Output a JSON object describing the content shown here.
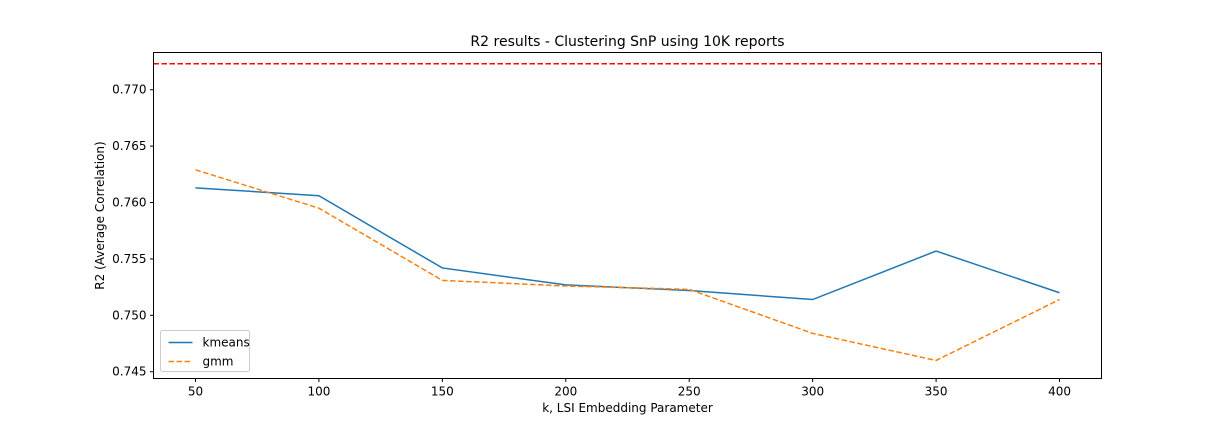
{
  "chart_data": {
    "type": "line",
    "title": "R2 results - Clustering SnP using 10K reports",
    "xlabel": "k, LSI Embedding Parameter",
    "ylabel": "R2 (Average Correlation)",
    "x": [
      50,
      100,
      150,
      200,
      250,
      300,
      350,
      400
    ],
    "x_ticks": [
      "50",
      "100",
      "150",
      "200",
      "250",
      "300",
      "350",
      "400"
    ],
    "y_ticks": [
      "0.745",
      "0.750",
      "0.755",
      "0.760",
      "0.765",
      "0.770"
    ],
    "xlim": [
      33,
      417
    ],
    "ylim": [
      0.7444,
      0.7733
    ],
    "grid": false,
    "legend_position": "lower-left",
    "series": [
      {
        "name": "kmeans",
        "color": "#1f77b4",
        "style": "solid",
        "values": [
          0.7613,
          0.7606,
          0.7542,
          0.7527,
          0.7522,
          0.7514,
          0.7557,
          0.752
        ]
      },
      {
        "name": "gmm",
        "color": "#ff7f0e",
        "style": "dashed",
        "values": [
          0.7629,
          0.7595,
          0.7531,
          0.7526,
          0.7523,
          0.7484,
          0.746,
          0.7514
        ]
      }
    ],
    "reference_line": {
      "y": 0.7723,
      "color": "#ff0000",
      "style": "dashed"
    }
  }
}
